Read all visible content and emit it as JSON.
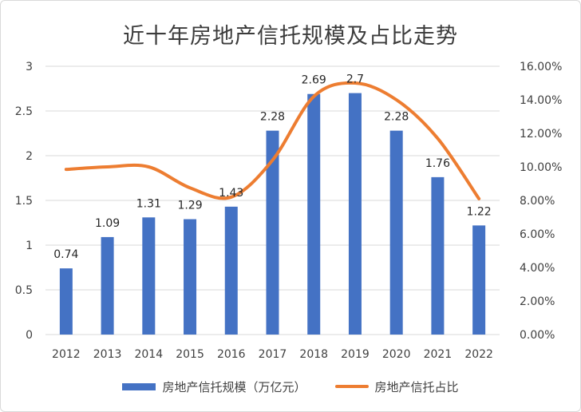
{
  "chart_data": {
    "type": "bar+line",
    "title": "近十年房地产信托规模及占比走势",
    "categories": [
      "2012",
      "2013",
      "2014",
      "2015",
      "2016",
      "2017",
      "2018",
      "2019",
      "2020",
      "2021",
      "2022"
    ],
    "series": [
      {
        "name": "房地产信托规模（万亿元）",
        "type": "bar",
        "axis": "left",
        "color": "#4472c4",
        "values": [
          0.74,
          1.09,
          1.31,
          1.29,
          1.43,
          2.28,
          2.69,
          2.7,
          2.28,
          1.76,
          1.22
        ],
        "labels": [
          "0.74",
          "1.09",
          "1.31",
          "1.29",
          "1.43",
          "2.28",
          "2.69",
          "2.7",
          "2.28",
          "1.76",
          "1.22"
        ]
      },
      {
        "name": "房地产信托占比",
        "type": "line",
        "axis": "right",
        "color": "#ed7d31",
        "values": [
          9.85,
          10.0,
          10.0,
          8.75,
          8.2,
          10.4,
          14.2,
          15.0,
          14.0,
          11.7,
          8.1
        ]
      }
    ],
    "ylim_left": [
      0,
      3
    ],
    "ylim_right": [
      0,
      16
    ],
    "yticks_left": [
      "0",
      "0.5",
      "1",
      "1.5",
      "2",
      "2.5",
      "3"
    ],
    "yticks_right": [
      "0.00%",
      "2.00%",
      "4.00%",
      "6.00%",
      "8.00%",
      "10.00%",
      "12.00%",
      "14.00%",
      "16.00%"
    ],
    "legend_position": "bottom"
  }
}
